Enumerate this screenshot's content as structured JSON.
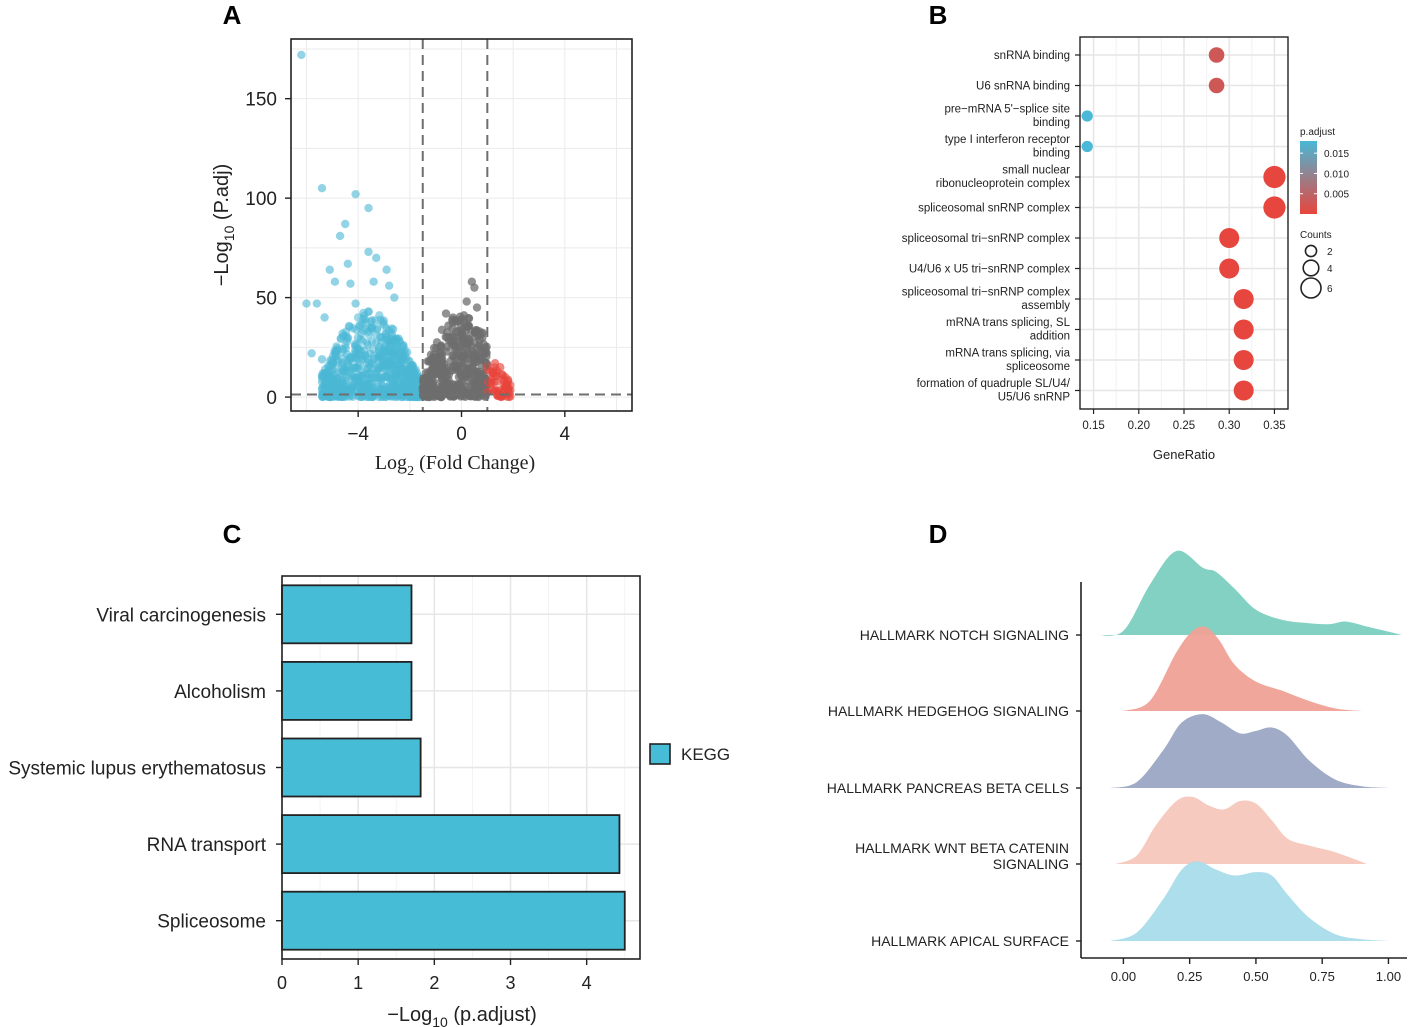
{
  "panels": {
    "A": "A",
    "B": "B",
    "C": "C",
    "D": "D"
  },
  "colors": {
    "up": "#e8453c",
    "down": "#4ab8d6",
    "ns": "#6e6e6e",
    "kegg": "#47bcd6",
    "low": "#e8453c",
    "high": "#4ab8d6"
  },
  "chart_data": [
    {
      "id": "A",
      "type": "scatter",
      "title": "",
      "xlabel": "Log",
      "xlabel_sub": "2",
      "xlabel_rest": " (Fold Change)",
      "ylabel_prefix": "−Log",
      "ylabel_sub": "10",
      "ylabel_rest": " (P.adj)",
      "xlim": [
        -6.6,
        6.6
      ],
      "ylim": [
        -7,
        180
      ],
      "xticks": [
        -4,
        0,
        4
      ],
      "xtick_labels": [
        "−4",
        "0",
        "4"
      ],
      "yticks": [
        0,
        50,
        100,
        150
      ],
      "ytick_labels": [
        "0",
        "50",
        "100",
        "150"
      ],
      "vlines": [
        -1.5,
        1.0
      ],
      "hline": 1.3,
      "groups": [
        "down",
        "ns",
        "up"
      ],
      "outliers_down": [
        [
          -6.2,
          172
        ],
        [
          -5.4,
          105
        ],
        [
          -4.1,
          102
        ],
        [
          -3.6,
          95
        ],
        [
          -4.5,
          87
        ],
        [
          -4.7,
          81
        ],
        [
          -3.6,
          73
        ],
        [
          -4.4,
          67
        ],
        [
          -2.9,
          64
        ],
        [
          -3.3,
          70
        ],
        [
          -5.1,
          64
        ],
        [
          -6.0,
          47
        ],
        [
          -5.6,
          47
        ],
        [
          -5.3,
          40
        ],
        [
          -4.9,
          58
        ],
        [
          -4.1,
          47
        ],
        [
          -5.8,
          22
        ],
        [
          -5.4,
          19
        ],
        [
          -4.6,
          32
        ],
        [
          -3.4,
          58
        ],
        [
          -2.8,
          56
        ],
        [
          -5.1,
          10
        ],
        [
          -4.3,
          57
        ],
        [
          -2.6,
          50
        ]
      ],
      "outliers_ns": [
        [
          0.4,
          58
        ],
        [
          0.5,
          55
        ],
        [
          0.2,
          48
        ],
        [
          -0.6,
          42
        ],
        [
          0.6,
          45
        ]
      ],
      "outliers_up": [
        [
          1.3,
          17
        ],
        [
          1.5,
          15
        ],
        [
          1.8,
          8
        ],
        [
          1.2,
          12
        ],
        [
          1.6,
          11
        ]
      ]
    },
    {
      "id": "B",
      "type": "scatter",
      "title": "",
      "xlabel": "GeneRatio",
      "xlim": [
        0.135,
        0.365
      ],
      "xticks": [
        0.15,
        0.2,
        0.25,
        0.3,
        0.35
      ],
      "xtick_labels": [
        "0.15",
        "0.20",
        "0.25",
        "0.30",
        "0.35"
      ],
      "terms": [
        {
          "label": [
            "snRNA binding"
          ],
          "x": 0.286,
          "count": 4,
          "padj": 0.003
        },
        {
          "label": [
            "U6 snRNA binding"
          ],
          "x": 0.286,
          "count": 4,
          "padj": 0.003
        },
        {
          "label": [
            "pre−mRNA 5'−splice site",
            "binding"
          ],
          "x": 0.143,
          "count": 2,
          "padj": 0.018
        },
        {
          "label": [
            "type I interferon receptor",
            "binding"
          ],
          "x": 0.143,
          "count": 2,
          "padj": 0.018
        },
        {
          "label": [
            "small nuclear",
            "ribonucleoprotein complex"
          ],
          "x": 0.35,
          "count": 7,
          "padj": 0.0002
        },
        {
          "label": [
            "spliceosomal snRNP complex"
          ],
          "x": 0.35,
          "count": 7,
          "padj": 0.0002
        },
        {
          "label": [
            "spliceosomal tri−snRNP complex"
          ],
          "x": 0.3,
          "count": 6,
          "padj": 0.0002
        },
        {
          "label": [
            "U4/U6 x U5 tri−snRNP complex"
          ],
          "x": 0.3,
          "count": 6,
          "padj": 0.0002
        },
        {
          "label": [
            "spliceosomal tri−snRNP complex",
            "assembly"
          ],
          "x": 0.316,
          "count": 6,
          "padj": 0.0002
        },
        {
          "label": [
            "mRNA trans splicing, SL",
            "addition"
          ],
          "x": 0.316,
          "count": 6,
          "padj": 0.0002
        },
        {
          "label": [
            "mRNA trans splicing, via",
            "spliceosome"
          ],
          "x": 0.316,
          "count": 6,
          "padj": 0.0002
        },
        {
          "label": [
            "formation of quadruple SL/U4/",
            "U5/U6 snRNP"
          ],
          "x": 0.316,
          "count": 6,
          "padj": 0.0002
        }
      ],
      "color_legend": {
        "title": "p.adjust",
        "breaks": [
          "0.015",
          "0.010",
          "0.005"
        ],
        "values": [
          0.015,
          0.01,
          0.005
        ],
        "range": [
          0.0,
          0.018
        ]
      },
      "size_legend": {
        "title": "Counts",
        "breaks": [
          "2",
          "4",
          "6"
        ],
        "values": [
          2,
          4,
          6
        ]
      }
    },
    {
      "id": "C",
      "type": "bar",
      "orientation": "horizontal",
      "categories": [
        "Viral carcinogenesis",
        "Alcoholism",
        "Systemic lupus erythematosus",
        "RNA transport",
        "Spliceosome"
      ],
      "values": [
        1.7,
        1.7,
        1.82,
        4.43,
        4.5
      ],
      "xlabel_prefix": "−Log",
      "xlabel_sub": "10",
      "xlabel_rest": " (p.adjust)",
      "xlim": [
        0,
        4.7
      ],
      "xticks": [
        0,
        1,
        2,
        3,
        4
      ],
      "xtick_labels": [
        "0",
        "1",
        "2",
        "3",
        "4"
      ],
      "legend": "KEGG"
    },
    {
      "id": "D",
      "type": "area",
      "subtype": "ridgeline",
      "xlim": [
        -0.16,
        1.07
      ],
      "xticks": [
        0,
        0.25,
        0.5,
        0.75,
        1.0
      ],
      "xtick_labels": [
        "0.00",
        "0.25",
        "0.50",
        "0.75",
        "1.00"
      ],
      "series": [
        {
          "name": [
            "HALLMARK NOTCH SIGNALING"
          ],
          "color": "#7ccfbf",
          "range": [
            -0.1,
            1.05
          ],
          "x": [
            -0.1,
            0.0,
            0.1,
            0.2,
            0.3,
            0.35,
            0.42,
            0.5,
            0.6,
            0.7,
            0.78,
            0.84,
            0.92,
            1.0,
            1.05
          ],
          "y": [
            0.0,
            0.05,
            0.6,
            1.0,
            0.8,
            0.75,
            0.55,
            0.3,
            0.18,
            0.14,
            0.13,
            0.16,
            0.1,
            0.04,
            0.0
          ]
        },
        {
          "name": [
            "HALLMARK HEDGEHOG SIGNALING"
          ],
          "color": "#f0a196",
          "range": [
            0.0,
            0.9
          ],
          "x": [
            0.0,
            0.1,
            0.2,
            0.26,
            0.31,
            0.36,
            0.42,
            0.5,
            0.6,
            0.7,
            0.8,
            0.9
          ],
          "y": [
            0.0,
            0.12,
            0.7,
            0.95,
            1.0,
            0.85,
            0.55,
            0.35,
            0.24,
            0.12,
            0.03,
            0.0
          ]
        },
        {
          "name": [
            "HALLMARK PANCREAS BETA CELLS"
          ],
          "color": "#9aa6c4",
          "range": [
            -0.05,
            1.0
          ],
          "x": [
            -0.05,
            0.05,
            0.15,
            0.22,
            0.3,
            0.37,
            0.44,
            0.5,
            0.56,
            0.62,
            0.7,
            0.8,
            0.9,
            1.0
          ],
          "y": [
            0.0,
            0.07,
            0.45,
            0.78,
            0.88,
            0.78,
            0.65,
            0.68,
            0.72,
            0.62,
            0.33,
            0.1,
            0.02,
            0.0
          ]
        },
        {
          "name": [
            "HALLMARK WNT BETA CATENIN",
            "SIGNALING"
          ],
          "color": "#f6c7bc",
          "range": [
            -0.03,
            0.92
          ],
          "x": [
            -0.03,
            0.05,
            0.12,
            0.2,
            0.26,
            0.32,
            0.38,
            0.44,
            0.5,
            0.56,
            0.62,
            0.7,
            0.8,
            0.92
          ],
          "y": [
            0.0,
            0.1,
            0.45,
            0.75,
            0.8,
            0.7,
            0.65,
            0.75,
            0.72,
            0.52,
            0.3,
            0.22,
            0.14,
            0.0
          ]
        },
        {
          "name": [
            "HALLMARK APICAL SURFACE"
          ],
          "color": "#a9dcea",
          "range": [
            -0.05,
            1.0
          ],
          "x": [
            -0.05,
            0.05,
            0.15,
            0.22,
            0.28,
            0.35,
            0.42,
            0.5,
            0.56,
            0.62,
            0.7,
            0.8,
            0.9,
            1.0
          ],
          "y": [
            0.0,
            0.1,
            0.5,
            0.85,
            0.95,
            0.85,
            0.78,
            0.82,
            0.78,
            0.55,
            0.28,
            0.08,
            0.02,
            0.0
          ]
        }
      ]
    }
  ]
}
